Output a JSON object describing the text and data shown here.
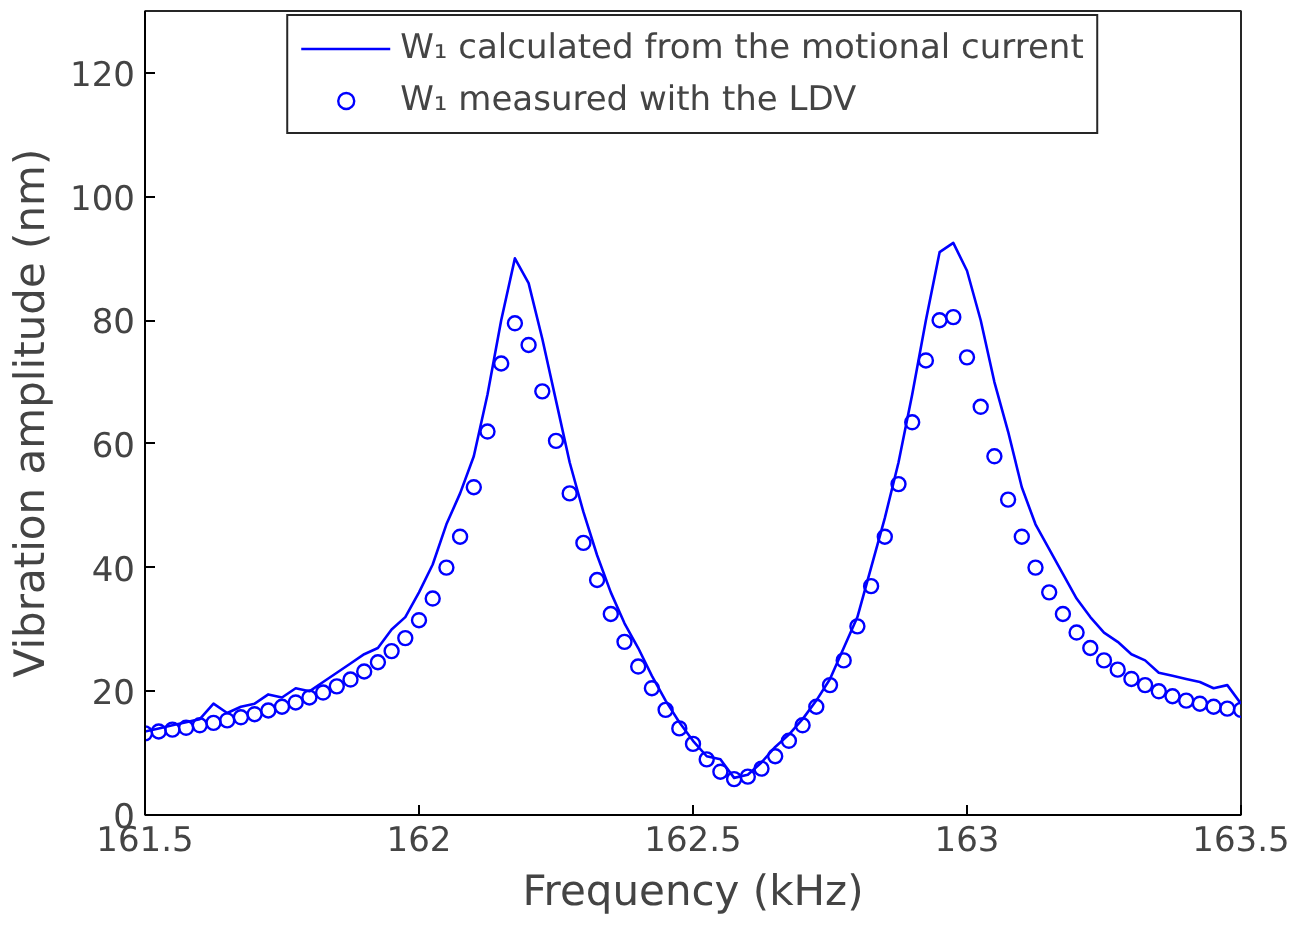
{
  "chart_data": {
    "type": "line",
    "xlabel": "Frequency (kHz)",
    "ylabel": "Vibration amplitude (nm)",
    "xlim": [
      161.5,
      163.5
    ],
    "xticks": [
      161.5,
      162,
      162.5,
      163,
      163.5
    ],
    "ylim": [
      0,
      130
    ],
    "yticks": [
      0,
      20,
      40,
      60,
      80,
      100,
      120
    ],
    "grid": false,
    "legend": "top",
    "series": [
      {
        "name": "W₁ calculated from the motional current",
        "color": "#0000ff",
        "line_style": "solid",
        "marker": "none",
        "x": [
          161.5,
          161.525,
          161.55,
          161.575,
          161.6,
          161.625,
          161.65,
          161.675,
          161.7,
          161.725,
          161.75,
          161.775,
          161.8,
          161.825,
          161.85,
          161.875,
          161.9,
          161.925,
          161.95,
          161.975,
          162.0,
          162.025,
          162.05,
          162.075,
          162.1,
          162.125,
          162.15,
          162.175,
          162.2,
          162.225,
          162.25,
          162.275,
          162.3,
          162.325,
          162.35,
          162.375,
          162.4,
          162.425,
          162.45,
          162.475,
          162.5,
          162.525,
          162.55,
          162.575,
          162.6,
          162.625,
          162.65,
          162.675,
          162.7,
          162.725,
          162.75,
          162.775,
          162.8,
          162.825,
          162.85,
          162.875,
          162.9,
          162.925,
          162.95,
          162.975,
          163.0,
          163.025,
          163.05,
          163.075,
          163.1,
          163.125,
          163.15,
          163.175,
          163.2,
          163.225,
          163.25,
          163.275,
          163.3,
          163.325,
          163.35,
          163.375,
          163.4,
          163.425,
          163.45,
          163.475,
          163.5
        ],
        "values": [
          13.5,
          14,
          14.5,
          15,
          15.5,
          18,
          16.5,
          17.5,
          18,
          19.5,
          19,
          20.5,
          20,
          21.5,
          23,
          24.5,
          26,
          27,
          30,
          32,
          36,
          40.5,
          47,
          52,
          58,
          68,
          80,
          90,
          86,
          77,
          67,
          57,
          49,
          42,
          36,
          31,
          27,
          22.5,
          18.5,
          15,
          12,
          9.5,
          9,
          6,
          6.5,
          8.5,
          11,
          13,
          15.5,
          18.5,
          22,
          27,
          32,
          40,
          48,
          57,
          68,
          80,
          91,
          92.5,
          88,
          80,
          70,
          62,
          53,
          47,
          43,
          39,
          35,
          32,
          29.5,
          28,
          26,
          25,
          23,
          22.5,
          22,
          21.5,
          20.5,
          21,
          18
        ]
      },
      {
        "name": "W₁ measured with the LDV",
        "type": "scatter",
        "color": "#0000ff",
        "marker": "circle",
        "x": [
          161.5,
          161.525,
          161.55,
          161.575,
          161.6,
          161.625,
          161.65,
          161.675,
          161.7,
          161.725,
          161.75,
          161.775,
          161.8,
          161.825,
          161.85,
          161.875,
          161.9,
          161.925,
          161.95,
          161.975,
          162.0,
          162.025,
          162.05,
          162.075,
          162.1,
          162.125,
          162.15,
          162.175,
          162.2,
          162.225,
          162.25,
          162.275,
          162.3,
          162.325,
          162.35,
          162.375,
          162.4,
          162.425,
          162.45,
          162.475,
          162.5,
          162.525,
          162.55,
          162.575,
          162.6,
          162.625,
          162.65,
          162.675,
          162.7,
          162.725,
          162.75,
          162.775,
          162.8,
          162.825,
          162.85,
          162.875,
          162.9,
          162.925,
          162.95,
          162.975,
          163.0,
          163.025,
          163.05,
          163.075,
          163.1,
          163.125,
          163.15,
          163.175,
          163.2,
          163.225,
          163.25,
          163.275,
          163.3,
          163.325,
          163.35,
          163.375,
          163.4,
          163.425,
          163.45,
          163.475,
          163.5
        ],
        "values": [
          13.2,
          13.5,
          13.8,
          14.1,
          14.5,
          14.9,
          15.3,
          15.8,
          16.3,
          16.9,
          17.5,
          18.2,
          19,
          19.8,
          20.8,
          21.9,
          23.2,
          24.7,
          26.5,
          28.6,
          31.5,
          35,
          40,
          45,
          53,
          62,
          73,
          79.5,
          76,
          68.5,
          60.5,
          52,
          44,
          38,
          32.5,
          28,
          24,
          20.5,
          17,
          14,
          11.5,
          9,
          7,
          5.8,
          6.2,
          7.5,
          9.5,
          12,
          14.5,
          17.5,
          21,
          25,
          30.5,
          37,
          45,
          53.5,
          63.5,
          73.5,
          80,
          80.5,
          74,
          66,
          58,
          51,
          45,
          40,
          36,
          32.5,
          29.5,
          27,
          25,
          23.5,
          22,
          21,
          20,
          19.2,
          18.5,
          18,
          17.5,
          17.2,
          17
        ]
      }
    ]
  }
}
